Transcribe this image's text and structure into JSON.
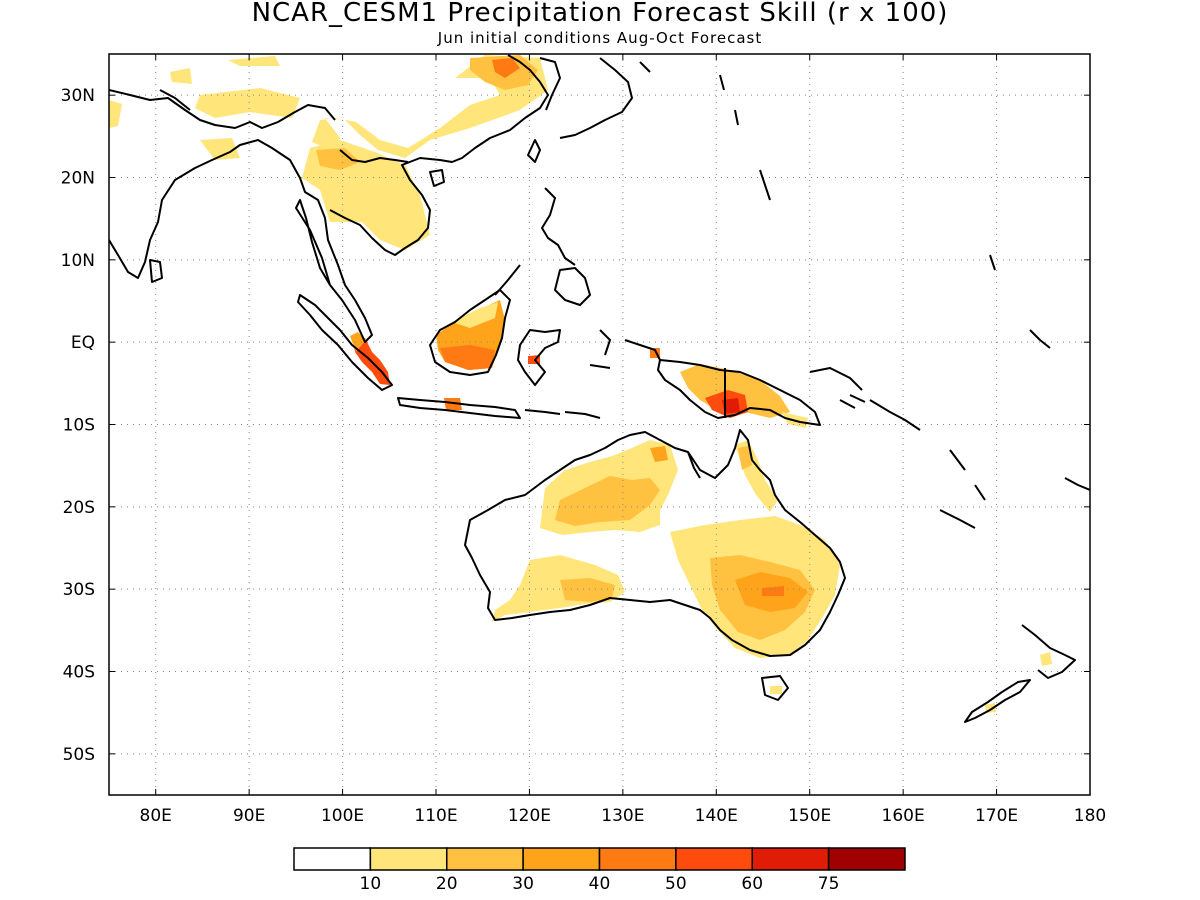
{
  "title": "NCAR_CESM1 Precipitation Forecast Skill (r x 100)",
  "subtitle": "Jun initial conditions  Aug-Oct Forecast",
  "map": {
    "lon_range": [
      75,
      180
    ],
    "lat_range": [
      -55,
      35
    ],
    "grid": "dotted",
    "lon_ticks": [
      80,
      90,
      100,
      110,
      120,
      130,
      140,
      150,
      160,
      170,
      180
    ],
    "lon_labels": [
      "80E",
      "90E",
      "100E",
      "110E",
      "120E",
      "130E",
      "140E",
      "150E",
      "160E",
      "170E",
      "180"
    ],
    "lat_ticks": [
      30,
      20,
      10,
      0,
      -10,
      -20,
      -30,
      -40,
      -50
    ],
    "lat_labels": [
      "30N",
      "20N",
      "10N",
      "EQ",
      "10S",
      "20S",
      "30S",
      "40S",
      "50S"
    ]
  },
  "colorbar": {
    "colors": [
      "#ffffff",
      "#ffe57a",
      "#ffc13f",
      "#ffa31a",
      "#ff7a12",
      "#ff4b0c",
      "#e01b06",
      "#a00000"
    ],
    "labels": [
      "10",
      "20",
      "30",
      "40",
      "50",
      "60",
      "75"
    ]
  }
}
